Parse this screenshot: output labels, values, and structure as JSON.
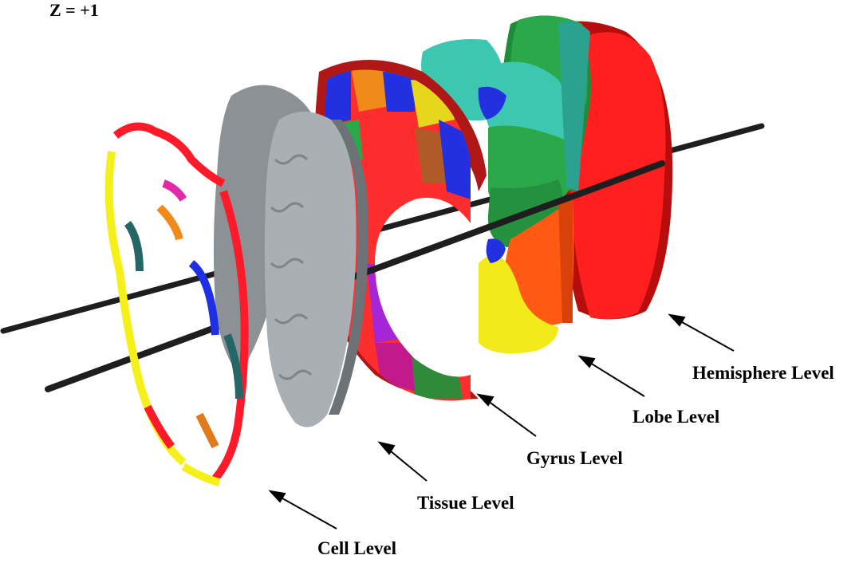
{
  "z_label": "Z = +1",
  "levels": [
    {
      "key": "hemisphere",
      "label": "Hemisphere Level"
    },
    {
      "key": "lobe",
      "label": "Lobe Level"
    },
    {
      "key": "gyrus",
      "label": "Gyrus Level"
    },
    {
      "key": "tissue",
      "label": "Tissue Level"
    },
    {
      "key": "cell",
      "label": "Cell Level"
    }
  ],
  "colors": {
    "background": "#ffffff",
    "axis": "#1e1e1e",
    "hemisphere_red": "#ff1f1f",
    "hemisphere_dark": "#b80d0d",
    "lobe_green": "#2ba84a",
    "lobe_teal": "#3ec7b0",
    "lobe_orange": "#ff5a14",
    "lobe_yellow": "#f2ea1a",
    "gyrus_blue": "#2330e0",
    "gyrus_purple": "#a526d6",
    "gyrus_brown": "#9a4a1d",
    "gyrus_darkteal": "#14605a",
    "tissue_gray": "#a9afb3",
    "tissue_dark": "#6c7276",
    "cell_red": "#ff1a2a",
    "cell_yellow": "#f5f01a",
    "cell_blue": "#1e2fe6",
    "cell_teal": "#256666"
  }
}
